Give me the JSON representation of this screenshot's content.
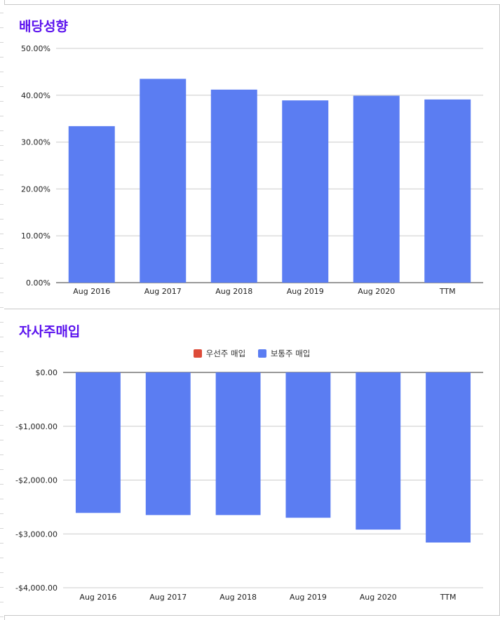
{
  "chart_data": [
    {
      "type": "bar",
      "title": "배당성향",
      "categories": [
        "Aug 2016",
        "Aug 2017",
        "Aug 2018",
        "Aug 2019",
        "Aug 2020",
        "TTM"
      ],
      "series": [
        {
          "values": [
            33.4,
            43.5,
            41.2,
            38.9,
            39.9,
            39.1
          ]
        }
      ],
      "yticks": [
        "0.00%",
        "10.00%",
        "20.00%",
        "30.00%",
        "40.00%",
        "50.00%"
      ],
      "ylim": [
        0,
        50
      ],
      "grid": true,
      "colors": {
        "bar": "#5b7df2",
        "title": "#5b13ee"
      }
    },
    {
      "type": "bar",
      "title": "자사주매입",
      "categories": [
        "Aug 2016",
        "Aug 2017",
        "Aug 2018",
        "Aug 2019",
        "Aug 2020",
        "TTM"
      ],
      "series": [
        {
          "name": "우선주 매입",
          "values": [
            0,
            0,
            0,
            0,
            0,
            0
          ]
        },
        {
          "name": "보통주 매입",
          "values": [
            -2610,
            -2650,
            -2650,
            -2700,
            -2920,
            -3160
          ]
        }
      ],
      "yticks": [
        "$0.00",
        "-$1,000.00",
        "-$2,000.00",
        "-$3,000.00",
        "-$4,000.00"
      ],
      "ylim": [
        -4000,
        0
      ],
      "legend": "top-center",
      "grid": true,
      "colors": {
        "preferred": "#dd4b39",
        "common": "#5b7df2",
        "title": "#5b13ee"
      }
    }
  ]
}
